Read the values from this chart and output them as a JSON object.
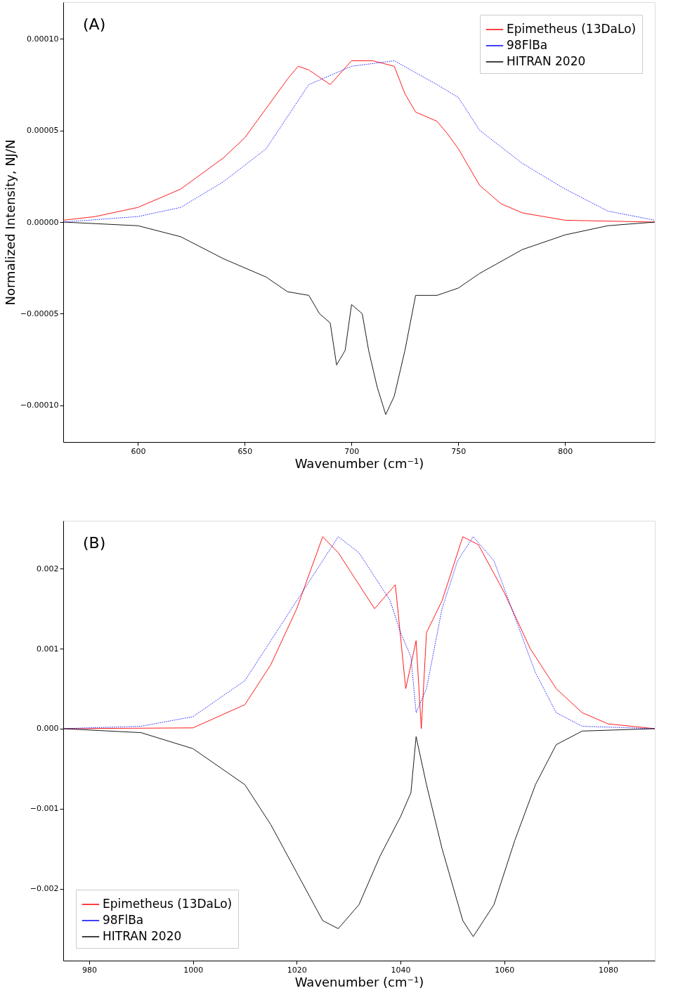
{
  "chart_data": [
    {
      "type": "line",
      "ylabel": "Normalized Intensity, NJ/N",
      "xlabel": "Wavenumber (cm⁻¹)",
      "annotations": [
        "(A)"
      ],
      "legend": "top right",
      "grid": false,
      "xlim": [
        565,
        842
      ],
      "xticks": [
        600,
        650,
        700,
        750,
        800
      ],
      "ylim": [
        -0.00012,
        0.00012
      ],
      "yticks": [
        {
          "value": -0.0001,
          "label": "−0.00010"
        },
        {
          "value": -5e-05,
          "label": "−0.00005"
        },
        {
          "value": 0,
          "label": "0.00000"
        },
        {
          "value": 5e-05,
          "label": "0.00005"
        },
        {
          "value": 0.0001,
          "label": "0.00010"
        }
      ],
      "series": [
        {
          "name": "Epimetheus (13DaLo)",
          "color": "#ff0000",
          "line_style": "solid",
          "x": [
            565,
            580,
            600,
            620,
            640,
            650,
            660,
            670,
            675,
            680,
            690,
            700,
            710,
            720,
            725,
            730,
            740,
            745,
            750,
            760,
            770,
            780,
            800,
            842
          ],
          "values": [
            1e-06,
            3e-06,
            8e-06,
            1.8e-05,
            3.5e-05,
            4.6e-05,
            6.2e-05,
            7.8e-05,
            8.5e-05,
            8.3e-05,
            7.5e-05,
            8.8e-05,
            8.8e-05,
            8.5e-05,
            7e-05,
            6e-05,
            5.5e-05,
            4.8e-05,
            4e-05,
            2e-05,
            1e-05,
            5e-06,
            1e-06,
            0
          ]
        },
        {
          "name": "98FlBa",
          "color": "#0000ff",
          "line_style": "dotted",
          "x": [
            565,
            600,
            620,
            640,
            660,
            680,
            700,
            720,
            740,
            750,
            760,
            780,
            800,
            820,
            842
          ],
          "values": [
            0,
            3e-06,
            8e-06,
            2.2e-05,
            4e-05,
            7.5e-05,
            8.5e-05,
            8.8e-05,
            7.5e-05,
            6.8e-05,
            5e-05,
            3.2e-05,
            1.8e-05,
            6e-06,
            1e-06
          ]
        },
        {
          "name": "HITRAN 2020",
          "color": "#000000",
          "line_style": "solid",
          "x": [
            565,
            600,
            620,
            640,
            660,
            670,
            680,
            685,
            690,
            693,
            697,
            700,
            705,
            708,
            712,
            716,
            720,
            725,
            730,
            740,
            750,
            760,
            780,
            800,
            820,
            842
          ],
          "values": [
            0,
            -2e-06,
            -8e-06,
            -2e-05,
            -3e-05,
            -3.8e-05,
            -4e-05,
            -5e-05,
            -5.5e-05,
            -7.8e-05,
            -7e-05,
            -4.5e-05,
            -5e-05,
            -7e-05,
            -9e-05,
            -0.000105,
            -9.5e-05,
            -7e-05,
            -4e-05,
            -4e-05,
            -3.6e-05,
            -2.8e-05,
            -1.5e-05,
            -7e-06,
            -2e-06,
            0
          ]
        }
      ]
    },
    {
      "type": "line",
      "xlabel": "Wavenumber (cm⁻¹)",
      "annotations": [
        "(B)"
      ],
      "legend": "bottom left",
      "grid": false,
      "xlim": [
        975,
        1089
      ],
      "xticks": [
        980,
        1000,
        1020,
        1040,
        1060,
        1080
      ],
      "ylim": [
        -0.0029,
        0.0026
      ],
      "yticks": [
        {
          "value": -0.002,
          "label": "−0.002"
        },
        {
          "value": -0.001,
          "label": "−0.001"
        },
        {
          "value": 0,
          "label": "0.000"
        },
        0.001,
        0.002
      ],
      "series": [
        {
          "name": "Epimetheus (13DaLo)",
          "color": "#ff0000",
          "line_style": "solid",
          "x": [
            975,
            1000,
            1010,
            1015,
            1020,
            1025,
            1028,
            1032,
            1035,
            1039,
            1041,
            1042,
            1043,
            1044,
            1045,
            1048,
            1052,
            1055,
            1060,
            1065,
            1070,
            1075,
            1080,
            1089
          ],
          "values": [
            0,
            1e-05,
            0.0003,
            0.0008,
            0.0015,
            0.0024,
            0.0022,
            0.0018,
            0.0015,
            0.0018,
            0.0005,
            0.0008,
            0.0011,
            0,
            0.0012,
            0.0016,
            0.0024,
            0.0023,
            0.0017,
            0.001,
            0.0005,
            0.0002,
            6e-05,
            0
          ]
        },
        {
          "name": "98FlBa",
          "color": "#0000ff",
          "line_style": "dotted",
          "x": [
            975,
            990,
            1000,
            1010,
            1015,
            1020,
            1025,
            1028,
            1032,
            1035,
            1038,
            1040,
            1042,
            1043,
            1045,
            1048,
            1051,
            1054,
            1058,
            1062,
            1066,
            1070,
            1075,
            1089
          ],
          "values": [
            0,
            3e-05,
            0.00015,
            0.0006,
            0.0011,
            0.0016,
            0.0021,
            0.0024,
            0.0022,
            0.0019,
            0.0016,
            0.0012,
            0.0009,
            0.0002,
            0.0005,
            0.0015,
            0.0021,
            0.0024,
            0.0021,
            0.0014,
            0.0007,
            0.0002,
            3e-05,
            0
          ]
        },
        {
          "name": "HITRAN 2020",
          "color": "#000000",
          "line_style": "solid",
          "x": [
            975,
            990,
            1000,
            1010,
            1015,
            1020,
            1025,
            1028,
            1032,
            1036,
            1040,
            1042,
            1043,
            1045,
            1048,
            1052,
            1054,
            1058,
            1062,
            1066,
            1070,
            1075,
            1089
          ],
          "values": [
            0,
            -5e-05,
            -0.00025,
            -0.0007,
            -0.0012,
            -0.0018,
            -0.0024,
            -0.0025,
            -0.0022,
            -0.0016,
            -0.0011,
            -0.0008,
            -0.0001,
            -0.0007,
            -0.0015,
            -0.0024,
            -0.0026,
            -0.0022,
            -0.0014,
            -0.0007,
            -0.0002,
            -3e-05,
            0
          ]
        }
      ]
    }
  ]
}
